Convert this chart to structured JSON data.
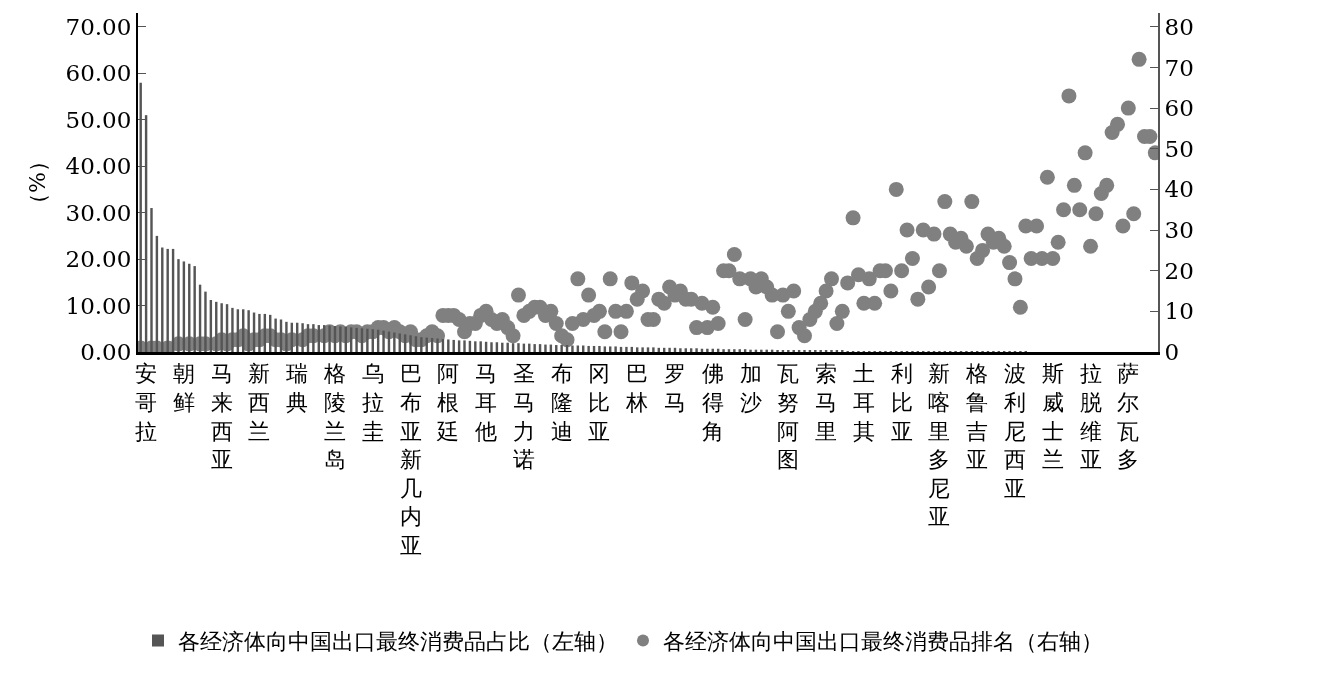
{
  "chart_data": {
    "type": "bar",
    "ylabel": "（%）",
    "categories": [
      null,
      "安哥拉",
      null,
      null,
      null,
      null,
      null,
      null,
      "朝鲜",
      null,
      null,
      null,
      null,
      null,
      null,
      "马来西亚",
      null,
      null,
      null,
      null,
      null,
      null,
      "新西兰",
      null,
      null,
      null,
      null,
      null,
      null,
      "瑞典",
      null,
      null,
      null,
      null,
      null,
      null,
      "格陵兰岛",
      null,
      null,
      null,
      null,
      null,
      null,
      "乌拉圭",
      null,
      null,
      null,
      null,
      null,
      null,
      "巴布亚新几内亚",
      null,
      null,
      null,
      null,
      null,
      null,
      "阿根廷",
      null,
      null,
      null,
      null,
      null,
      null,
      "马耳他",
      null,
      null,
      null,
      null,
      null,
      null,
      "圣马力诺",
      null,
      null,
      null,
      null,
      null,
      null,
      "布隆迪",
      null,
      null,
      null,
      null,
      null,
      null,
      "冈比亚",
      null,
      null,
      null,
      null,
      null,
      null,
      "巴林",
      null,
      null,
      null,
      null,
      null,
      null,
      "罗马",
      null,
      null,
      null,
      null,
      null,
      null,
      "佛得角",
      null,
      null,
      null,
      null,
      null,
      null,
      "加沙",
      null,
      null,
      null,
      null,
      null,
      null,
      "瓦努阿图",
      null,
      null,
      null,
      null,
      null,
      null,
      "索马里",
      null,
      null,
      null,
      null,
      null,
      null,
      "土耳其",
      null,
      null,
      null,
      null,
      null,
      null,
      "利比亚",
      null,
      null,
      null,
      null,
      null,
      null,
      "新喀里多尼亚",
      null,
      null,
      null,
      null,
      null,
      null,
      "格鲁吉亚",
      null,
      null,
      null,
      null,
      null,
      null,
      "波利尼西亚",
      null,
      null,
      null,
      null,
      null,
      null,
      "斯威士兰",
      null,
      null,
      null,
      null,
      null,
      null,
      "拉脱维亚",
      null,
      null,
      null,
      null,
      null,
      null,
      "萨尔瓦多",
      null,
      null,
      null,
      null,
      null
    ],
    "series": [
      {
        "name": "各经济体向中国出口最终消费品占比（左轴）",
        "color": "#555555",
        "values": [
          58,
          51,
          31,
          25,
          22.5,
          22.2,
          22.2,
          20,
          19.5,
          19,
          18.5,
          14.5,
          13,
          11.2,
          10.8,
          10.5,
          10.3,
          9.5,
          9.2,
          9.2,
          9,
          8.5,
          8.2,
          8.2,
          8,
          7.2,
          7,
          6.5,
          6.3,
          6.3,
          6.2,
          6,
          6,
          5.8,
          5.8,
          5.7,
          5.6,
          5.5,
          5.4,
          5.3,
          5.2,
          5.1,
          5,
          4.9,
          4.8,
          4.6,
          4.4,
          4.2,
          4,
          3.8,
          3.6,
          3.4,
          3.2,
          3.1,
          3,
          2.9,
          2.8,
          2.7,
          2.6,
          2.5,
          2.5,
          2.4,
          2.3,
          2.3,
          2.2,
          2.1,
          2.1,
          2,
          2,
          1.9,
          1.9,
          1.8,
          1.8,
          1.7,
          1.7,
          1.6,
          1.6,
          1.5,
          1.5,
          1.5,
          1.4,
          1.4,
          1.4,
          1.3,
          1.3,
          1.3,
          1.2,
          1.2,
          1.2,
          1.1,
          1.1,
          1.1,
          1,
          1,
          1,
          1,
          0.9,
          0.9,
          0.9,
          0.9,
          0.8,
          0.8,
          0.8,
          0.8,
          0.7,
          0.7,
          0.7,
          0.7,
          0.6,
          0.6,
          0.6,
          0.6,
          0.6,
          0.5,
          0.5,
          0.5,
          0.5,
          0.5,
          0.4,
          0.4,
          0.4,
          0.4,
          0.4,
          0.4,
          0.3,
          0.3,
          0.3,
          0.3,
          0.3,
          0.3,
          0.3,
          0.2,
          0.2,
          0.2,
          0.2,
          0.2,
          0.2,
          0.2,
          0.2,
          0.2,
          0.2,
          0.1,
          0.1,
          0.1,
          0.1,
          0.1,
          0.1,
          0.1,
          0.1,
          0.1,
          0.1,
          0.1,
          0.1,
          0.1,
          0.1,
          0.1,
          0.1,
          0.1,
          0.1,
          0.1,
          0.1,
          0.1,
          0.1,
          0.1,
          0.1,
          0,
          0,
          0,
          0,
          0,
          0,
          0,
          0,
          0,
          0,
          0,
          0,
          0,
          0,
          0,
          0,
          0,
          0,
          0,
          0,
          0,
          0,
          0,
          0
        ]
      },
      {
        "name": "各经济体向中国出口最终消费品排名（右轴）",
        "type": "scatter",
        "axis": "y2",
        "color": "#808080",
        "values": [
          1,
          null,
          1,
          1,
          null,
          1,
          null,
          2,
          null,
          2,
          null,
          2,
          2,
          null,
          2,
          3,
          2,
          3,
          3,
          4,
          2,
          3,
          3,
          4,
          4,
          3,
          3,
          2,
          3,
          null,
          3,
          4,
          4,
          null,
          4,
          5,
          4,
          5,
          4,
          5,
          5,
          4,
          5,
          5,
          6,
          6,
          5,
          6,
          5,
          4,
          5,
          3,
          3,
          4,
          5,
          4,
          9,
          9,
          9,
          8,
          5,
          7,
          7,
          9,
          10,
          8,
          7,
          8,
          6,
          4,
          14,
          9,
          10,
          11,
          11,
          9,
          10,
          7,
          4,
          3,
          7,
          18,
          8,
          14,
          9,
          10,
          5,
          18,
          10,
          5,
          10,
          17,
          13,
          15,
          8,
          8,
          13,
          12,
          16,
          14,
          15,
          13,
          13,
          6,
          12,
          6,
          11,
          7,
          20,
          20,
          24,
          18,
          8,
          18,
          16,
          18,
          16,
          14,
          5,
          14,
          10,
          15,
          6,
          4,
          8,
          10,
          12,
          15,
          18,
          7,
          10,
          17,
          33,
          19,
          12,
          18,
          12,
          20,
          20,
          15,
          40,
          20,
          30,
          23,
          13,
          30,
          16,
          29,
          20,
          37,
          29,
          27,
          28,
          26,
          37,
          23,
          25,
          29,
          27,
          28,
          26,
          22,
          18,
          11,
          31,
          23,
          31,
          23,
          43,
          23,
          27,
          35,
          63,
          41,
          35,
          49,
          26,
          34,
          39,
          41,
          54,
          56,
          31,
          60,
          34,
          72,
          53,
          53,
          49
        ]
      }
    ],
    "ylim": [
      0,
      73
    ],
    "yticks": [
      {
        "value": 0,
        "label": "0.00"
      },
      {
        "value": 10,
        "label": "10.00"
      },
      {
        "value": 20,
        "label": "20.00"
      },
      {
        "value": 30,
        "label": "30.00"
      },
      {
        "value": 40,
        "label": "40.00"
      },
      {
        "value": 50,
        "label": "50.00"
      },
      {
        "value": 60,
        "label": "60.00"
      },
      {
        "value": 70,
        "label": "70.00"
      }
    ],
    "y2lim": [
      0,
      83.4
    ],
    "y2ticks": [
      0,
      10,
      20,
      30,
      40,
      50,
      60,
      70,
      80
    ],
    "grid": false,
    "marker": "circle",
    "legend": "bottom"
  }
}
